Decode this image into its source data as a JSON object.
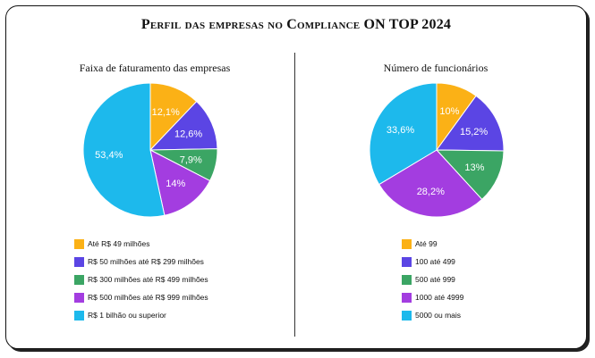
{
  "page_title": "Perfil das empresas no Compliance ON TOP 2024",
  "chart_data": [
    {
      "type": "pie",
      "title": "Faixa de faturamento das empresas",
      "categories": [
        "Até R$ 49 milhões",
        "R$ 50 milhões até R$ 299 milhões",
        "R$ 300 milhões até R$ 499 milhões",
        "R$ 500 milhões até R$ 999 milhões",
        "R$ 1 bilhão ou superior"
      ],
      "values": [
        12.1,
        12.6,
        7.9,
        14,
        53.4
      ],
      "labels": [
        "12,1%",
        "12,6%",
        "7,9%",
        "14%",
        "53,4%"
      ],
      "colors": [
        "#FBB116",
        "#5B45E4",
        "#3BA564",
        "#A33DE0",
        "#1DB9EC"
      ],
      "legend": "bottom"
    },
    {
      "type": "pie",
      "title": "Número de funcionários",
      "categories": [
        "Até 99",
        "100 até 499",
        "500 até 999",
        "1000 até 4999",
        "5000 ou mais"
      ],
      "values": [
        10,
        15.2,
        13,
        28.2,
        33.6
      ],
      "labels": [
        "10%",
        "15,2%",
        "13%",
        "28,2%",
        "33,6%"
      ],
      "colors": [
        "#FBB116",
        "#5B45E4",
        "#3BA564",
        "#A33DE0",
        "#1DB9EC"
      ],
      "legend": "bottom"
    }
  ]
}
